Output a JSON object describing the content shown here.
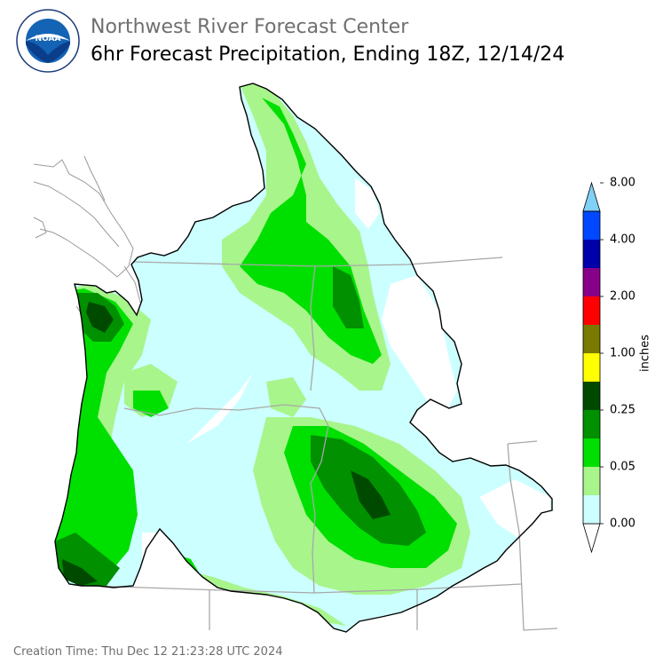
{
  "header": {
    "org_title": "Northwest River Forecast Center",
    "product_title": "6hr Forecast Precipitation, Ending 18Z, 12/14/24"
  },
  "logo": {
    "name": "NOAA",
    "ring_text": "NATIONAL OCEANIC AND ATMOSPHERIC ADMINISTRATION · U.S. DEPARTMENT OF COMMERCE"
  },
  "legend": {
    "units": "inches",
    "ticks": [
      "8.00",
      "4.00",
      "2.00",
      "1.00",
      "0.25",
      "0.05",
      "0.00"
    ],
    "colors": [
      "#ffffff",
      "#ccffff",
      "#a8f58c",
      "#00e000",
      "#009000",
      "#004a00",
      "#ffff00",
      "#7a7a00",
      "#ff0000",
      "#880088",
      "#0000aa",
      "#0048ff",
      "#80d0f8"
    ]
  },
  "footer": {
    "creation_time": "Creation Time: Thu Dec 12 21:23:28 UTC 2024"
  },
  "map": {
    "region": "Pacific Northwest / Columbia River Basin",
    "colors": {
      "none": "#ffffff",
      "trace": "#ccffff",
      "light": "#a8f58c",
      "moderate": "#00e000",
      "heavy": "#009000",
      "very_heavy": "#004a00",
      "basin_border": "#000000",
      "state_border": "#a8a8a8"
    }
  }
}
